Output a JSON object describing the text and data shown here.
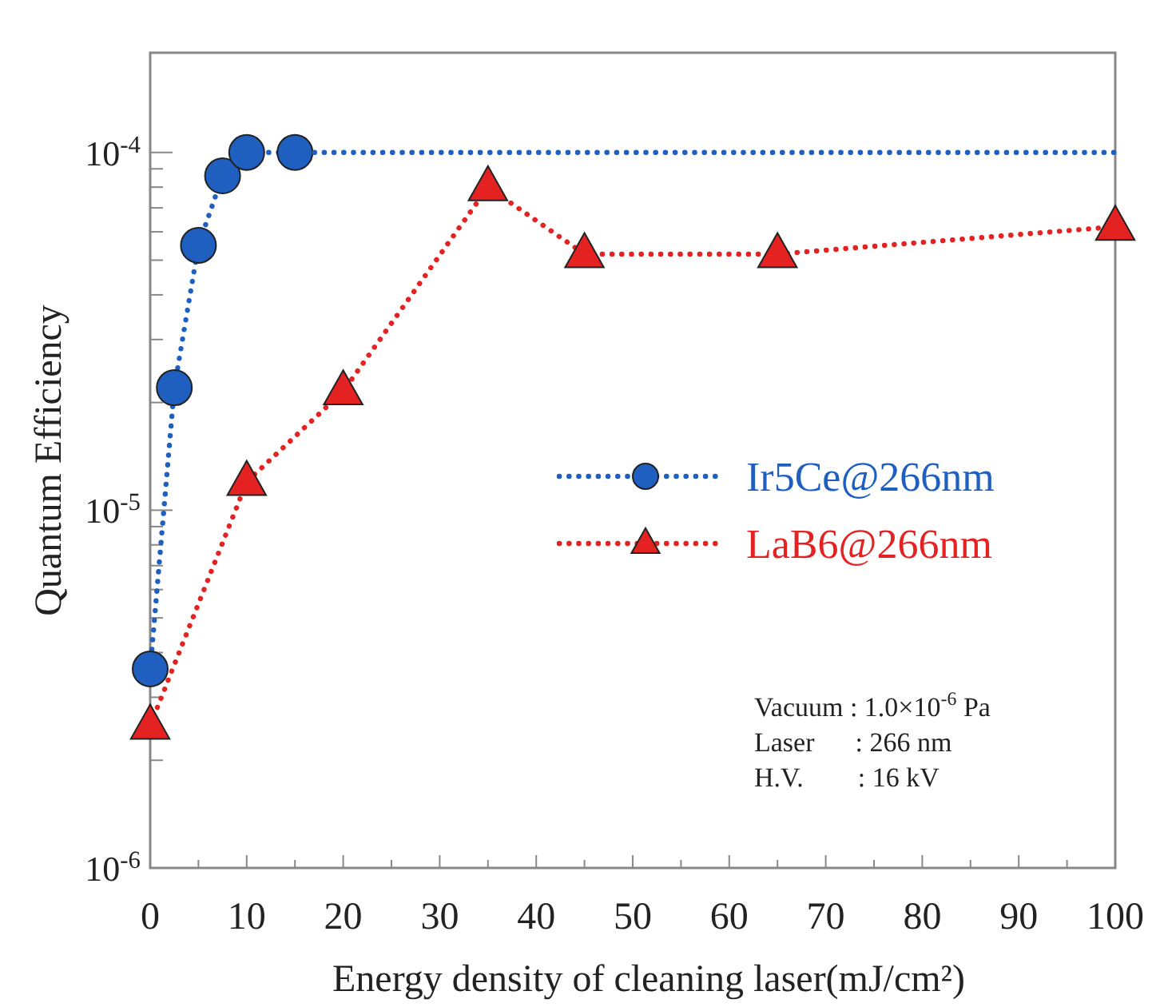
{
  "chart_data": {
    "type": "line",
    "xlabel": "Energy density of cleaning laser(mJ/cm²)",
    "ylabel": "Quantum Efficiency",
    "log": "y",
    "xlim": [
      0,
      100
    ],
    "ylim": [
      1e-06,
      0.00019
    ],
    "xticks": [
      0,
      {
        "value": 5,
        "label": null
      },
      10,
      {
        "value": 15,
        "label": null
      },
      20,
      {
        "value": 25,
        "label": null
      },
      30,
      {
        "value": 35,
        "label": null
      },
      40,
      {
        "value": 45,
        "label": null
      },
      50,
      {
        "value": 55,
        "label": null
      },
      60,
      {
        "value": 65,
        "label": null
      },
      70,
      {
        "value": 75,
        "label": null
      },
      80,
      {
        "value": 85,
        "label": null
      },
      90,
      {
        "value": 95,
        "label": null
      },
      100
    ],
    "yticks": [
      {
        "value": 1e-06,
        "label": "10$^{-6}$"
      },
      {
        "value": 2e-06,
        "label": null
      },
      {
        "value": 3e-06,
        "label": null
      },
      {
        "value": 4e-06,
        "label": null
      },
      {
        "value": 5e-06,
        "label": null
      },
      {
        "value": 6e-06,
        "label": null
      },
      {
        "value": 7e-06,
        "label": null
      },
      {
        "value": 8e-06,
        "label": null
      },
      {
        "value": 9e-06,
        "label": null
      },
      {
        "value": 1e-05,
        "label": "10$^{-5}$"
      },
      {
        "value": 2e-05,
        "label": null
      },
      {
        "value": 3e-05,
        "label": null
      },
      {
        "value": 4e-05,
        "label": null
      },
      {
        "value": 5e-05,
        "label": null
      },
      {
        "value": 6e-05,
        "label": null
      },
      {
        "value": 7e-05,
        "label": null
      },
      {
        "value": 8e-05,
        "label": null
      },
      {
        "value": 9e-05,
        "label": null
      },
      {
        "value": 0.0001,
        "label": "10$^{-4}$"
      }
    ],
    "grid": false,
    "legend": "right",
    "line_style": "dotted",
    "series": [
      {
        "name": "Ir5Ce@266nm",
        "color": "#1f5fbf",
        "marker": "circle",
        "x": [
          0,
          2.5,
          5,
          7.5,
          10,
          15
        ],
        "values": [
          3.6e-06,
          2.2e-05,
          5.5e-05,
          8.6e-05,
          0.0001,
          0.0001
        ]
      },
      {
        "name": "LaB6@266nm",
        "color": "#e52222",
        "marker": "triangle",
        "x": [
          0,
          10,
          20,
          35,
          45,
          65,
          100
        ],
        "values": [
          2.5e-06,
          1.2e-05,
          2.15e-05,
          8e-05,
          5.2e-05,
          5.2e-05,
          6.2e-05
        ]
      },
      {
        "type": "line",
        "color": "#1f5fbf",
        "marker": "none",
        "x": [
          15,
          100
        ],
        "values": [
          0.0001,
          0.0001
        ]
      }
    ],
    "annotations": [
      "Vacuum : 1.0×10$^{-6}$ Pa",
      "Laser      : 266 nm",
      "H.V.        : 16 kV"
    ]
  }
}
